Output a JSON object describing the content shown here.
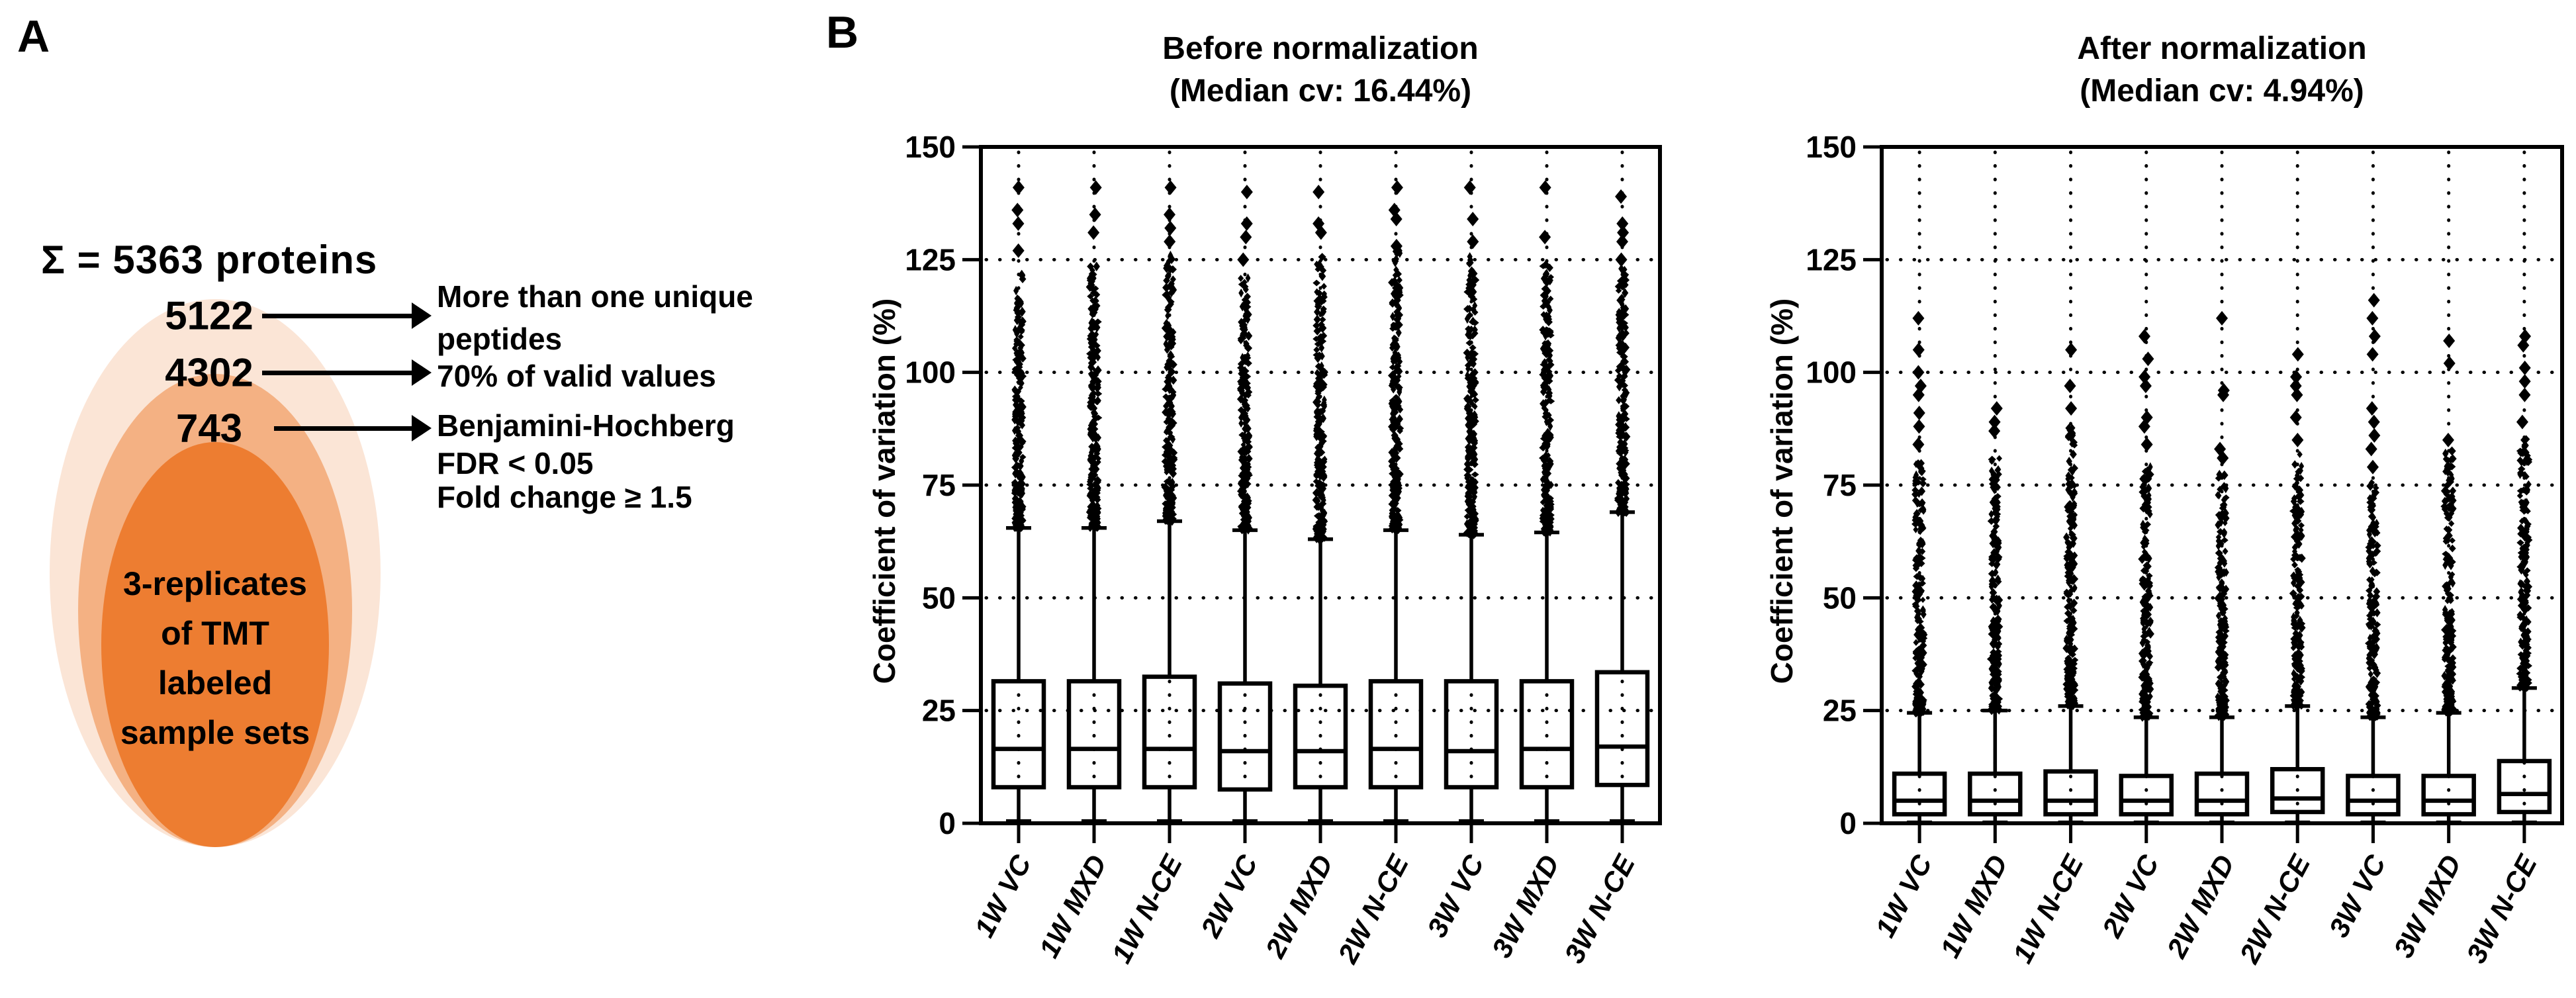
{
  "panel_a": {
    "label": "A",
    "total_label": "Σ = 5363 proteins",
    "venn_colors": {
      "outer": "#FBE5D6",
      "middle": "#F4B183",
      "inner": "#ED7D31"
    },
    "steps": [
      {
        "count": "5122",
        "label_lines": [
          "More than one unique",
          "peptides"
        ]
      },
      {
        "count": "4302",
        "label_lines": [
          "70% of valid values"
        ]
      },
      {
        "count": "743",
        "label_lines": [
          "Benjamini-Hochberg",
          "FDR < 0.05",
          "Fold change ≥ 1.5"
        ]
      }
    ],
    "center_lines": [
      "3-replicates",
      "of TMT",
      "labeled",
      "sample sets"
    ]
  },
  "panel_b": {
    "label": "B"
  },
  "chart_data": [
    {
      "type": "box",
      "title": "Before normalization",
      "subtitle": "(Median cv: 16.44%)",
      "median_cv_percent": 16.44,
      "ylabel": "Coefficient of variation (%)",
      "ylim": [
        0,
        150
      ],
      "yticks": [
        0,
        25,
        50,
        75,
        100,
        125,
        150
      ],
      "grid": {
        "horizontal_dotted_at": [
          25,
          50,
          75,
          100,
          125
        ],
        "vertical_dotted_at_categories": true
      },
      "legend": "none",
      "categories": [
        "1W VC",
        "1W MXD",
        "1W N-CE",
        "2W VC",
        "2W MXD",
        "2W N-CE",
        "3W VC",
        "3W MXD",
        "3W N-CE"
      ],
      "boxes": [
        {
          "whisker_low": 0.5,
          "q1": 8,
          "median": 16.5,
          "q3": 31.5,
          "whisker_high": 65.5,
          "dense_outliers_to": 122,
          "extreme_outliers": [
            127,
            133,
            136,
            141
          ]
        },
        {
          "whisker_low": 0.5,
          "q1": 8,
          "median": 16.5,
          "q3": 31.5,
          "whisker_high": 65.5,
          "dense_outliers_to": 124,
          "extreme_outliers": [
            131,
            135,
            141
          ]
        },
        {
          "whisker_low": 0.5,
          "q1": 8,
          "median": 16.5,
          "q3": 32.5,
          "whisker_high": 67,
          "dense_outliers_to": 126,
          "extreme_outliers": [
            129,
            132,
            135,
            141
          ]
        },
        {
          "whisker_low": 0.5,
          "q1": 7.5,
          "median": 16,
          "q3": 31,
          "whisker_high": 65,
          "dense_outliers_to": 121,
          "extreme_outliers": [
            125,
            130,
            133,
            140
          ]
        },
        {
          "whisker_low": 0.5,
          "q1": 8,
          "median": 16,
          "q3": 30.5,
          "whisker_high": 63,
          "dense_outliers_to": 126,
          "extreme_outliers": [
            131,
            133,
            140
          ]
        },
        {
          "whisker_low": 0.5,
          "q1": 8,
          "median": 16.5,
          "q3": 31.5,
          "whisker_high": 65,
          "dense_outliers_to": 127,
          "extreme_outliers": [
            128,
            134,
            136,
            141
          ]
        },
        {
          "whisker_low": 0.5,
          "q1": 8,
          "median": 16,
          "q3": 31.5,
          "whisker_high": 64,
          "dense_outliers_to": 126,
          "extreme_outliers": [
            129,
            134,
            141
          ]
        },
        {
          "whisker_low": 0.5,
          "q1": 8,
          "median": 16.5,
          "q3": 31.5,
          "whisker_high": 64.5,
          "dense_outliers_to": 124,
          "extreme_outliers": [
            130,
            141
          ]
        },
        {
          "whisker_low": 0.5,
          "q1": 8.5,
          "median": 17,
          "q3": 33.5,
          "whisker_high": 69,
          "dense_outliers_to": 123,
          "extreme_outliers": [
            125,
            129,
            131,
            133,
            139
          ]
        }
      ]
    },
    {
      "type": "box",
      "title": "After normalization",
      "subtitle": "(Median cv: 4.94%)",
      "median_cv_percent": 4.94,
      "ylabel": "Coefficient of variation (%)",
      "ylim": [
        0,
        150
      ],
      "yticks": [
        0,
        25,
        50,
        75,
        100,
        125,
        150
      ],
      "grid": {
        "horizontal_dotted_at": [
          25,
          50,
          75,
          100,
          125
        ],
        "vertical_dotted_at_categories": true
      },
      "legend": "none",
      "categories": [
        "1W VC",
        "1W MXD",
        "1W N-CE",
        "2W VC",
        "2W MXD",
        "2W N-CE",
        "3W VC",
        "3W MXD",
        "3W N-CE"
      ],
      "boxes": [
        {
          "whisker_low": 0.2,
          "q1": 2,
          "median": 5,
          "q3": 11,
          "whisker_high": 24.5,
          "dense_outliers_to": 80,
          "extreme_outliers": [
            84,
            88,
            91,
            95,
            97,
            100,
            105,
            112
          ]
        },
        {
          "whisker_low": 0.2,
          "q1": 2,
          "median": 5,
          "q3": 11,
          "whisker_high": 25,
          "dense_outliers_to": 81,
          "extreme_outliers": [
            87,
            89,
            92
          ]
        },
        {
          "whisker_low": 0.2,
          "q1": 2,
          "median": 5,
          "q3": 11.5,
          "whisker_high": 26,
          "dense_outliers_to": 88,
          "extreme_outliers": [
            92,
            97,
            105
          ]
        },
        {
          "whisker_low": 0.2,
          "q1": 2,
          "median": 5,
          "q3": 10.5,
          "whisker_high": 23.5,
          "dense_outliers_to": 80,
          "extreme_outliers": [
            84,
            88,
            90,
            97,
            99,
            103,
            108
          ]
        },
        {
          "whisker_low": 0.2,
          "q1": 2,
          "median": 5,
          "q3": 11,
          "whisker_high": 23.5,
          "dense_outliers_to": 78,
          "extreme_outliers": [
            81,
            83,
            95,
            96,
            112
          ]
        },
        {
          "whisker_low": 0.2,
          "q1": 2.5,
          "median": 5.5,
          "q3": 12,
          "whisker_high": 26,
          "dense_outliers_to": 82,
          "extreme_outliers": [
            85,
            90,
            95,
            97,
            99,
            104
          ]
        },
        {
          "whisker_low": 0.2,
          "q1": 2,
          "median": 5,
          "q3": 10.5,
          "whisker_high": 23.5,
          "dense_outliers_to": 76,
          "extreme_outliers": [
            79,
            83,
            86,
            89,
            92,
            104,
            108,
            112,
            116
          ]
        },
        {
          "whisker_low": 0.2,
          "q1": 2,
          "median": 5,
          "q3": 10.5,
          "whisker_high": 24.5,
          "dense_outliers_to": 83,
          "extreme_outliers": [
            85,
            102,
            107
          ]
        },
        {
          "whisker_low": 0.2,
          "q1": 2.5,
          "median": 6.5,
          "q3": 13.8,
          "whisker_high": 30,
          "dense_outliers_to": 86,
          "extreme_outliers": [
            89,
            95,
            98,
            101,
            106,
            108
          ]
        }
      ]
    }
  ]
}
